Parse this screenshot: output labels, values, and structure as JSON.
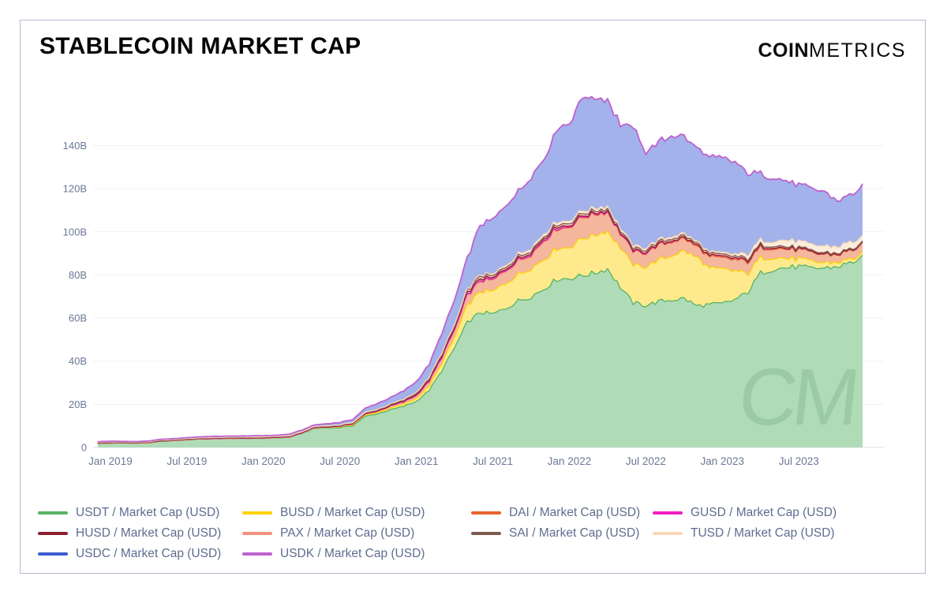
{
  "header": {
    "title": "STABLECOIN MARKET CAP",
    "logo_bold": "COIN",
    "logo_light": "METRICS"
  },
  "watermark": "CM",
  "chart_data": {
    "type": "area",
    "stacked": true,
    "title": "STABLECOIN MARKET CAP",
    "unit": "USD billions",
    "grid": true,
    "legend_position": "bottom",
    "ylim": [
      0,
      160
    ],
    "y_tick_labels": [
      "0",
      "20B",
      "40B",
      "60B",
      "80B",
      "100B",
      "120B",
      "140B"
    ],
    "x_tick_labels": [
      "Jan 2019",
      "Jul 2019",
      "Jan 2020",
      "Jul 2020",
      "Jan 2021",
      "Jul 2021",
      "Jan 2022",
      "Jul 2022",
      "Jan 2023",
      "Jul 2023"
    ],
    "x_tick_month_index": [
      1,
      7,
      13,
      19,
      25,
      31,
      37,
      43,
      49,
      55
    ],
    "months": [
      "2018-12",
      "2019-01",
      "2019-02",
      "2019-03",
      "2019-04",
      "2019-05",
      "2019-06",
      "2019-07",
      "2019-08",
      "2019-09",
      "2019-10",
      "2019-11",
      "2019-12",
      "2020-01",
      "2020-02",
      "2020-03",
      "2020-04",
      "2020-05",
      "2020-06",
      "2020-07",
      "2020-08",
      "2020-09",
      "2020-10",
      "2020-11",
      "2020-12",
      "2021-01",
      "2021-02",
      "2021-03",
      "2021-04",
      "2021-05",
      "2021-06",
      "2021-07",
      "2021-08",
      "2021-09",
      "2021-10",
      "2021-11",
      "2021-12",
      "2022-01",
      "2022-02",
      "2022-03",
      "2022-04",
      "2022-05",
      "2022-06",
      "2022-07",
      "2022-08",
      "2022-09",
      "2022-10",
      "2022-11",
      "2022-12",
      "2023-01",
      "2023-02",
      "2023-03",
      "2023-04",
      "2023-05",
      "2023-06",
      "2023-07",
      "2023-08",
      "2023-09",
      "2023-10",
      "2023-11",
      "2023-12"
    ],
    "series": [
      {
        "name": "USDT",
        "legend": "USDT / Market Cap (USD)",
        "color": "#57b266",
        "values": [
          1.9,
          2.0,
          2.05,
          2.0,
          2.2,
          2.9,
          3.2,
          3.6,
          3.9,
          4.05,
          4.1,
          4.15,
          4.1,
          4.2,
          4.4,
          4.6,
          6.4,
          8.8,
          9.1,
          9.2,
          10.0,
          14.4,
          15.7,
          17.5,
          19.0,
          21.4,
          26.4,
          35.6,
          46.2,
          57.9,
          62.6,
          61.8,
          64.5,
          68.0,
          70.0,
          73.5,
          78.0,
          78.4,
          79.7,
          80.9,
          82.9,
          74.3,
          67.0,
          65.9,
          67.6,
          68.4,
          69.1,
          65.6,
          66.2,
          66.6,
          68.5,
          72.0,
          80.9,
          82.8,
          83.3,
          83.8,
          82.9,
          83.2,
          83.8,
          85.5,
          88.0
        ]
      },
      {
        "name": "BUSD",
        "legend": "BUSD / Market Cap (USD)",
        "color": "#fdd20a",
        "values": [
          0,
          0,
          0,
          0,
          0,
          0,
          0,
          0,
          0,
          0.01,
          0.03,
          0.06,
          0.1,
          0.12,
          0.13,
          0.15,
          0.19,
          0.23,
          0.28,
          0.37,
          0.49,
          0.58,
          0.68,
          0.79,
          1.0,
          1.4,
          2.1,
          3.3,
          4.7,
          7.8,
          9.7,
          10.4,
          11.6,
          12.3,
          13.2,
          13.7,
          14.6,
          14.4,
          17.4,
          17.6,
          17.5,
          18.3,
          17.5,
          17.8,
          19.3,
          20.6,
          21.7,
          22.4,
          16.6,
          16.1,
          13.3,
          8.7,
          7.1,
          5.6,
          4.3,
          3.6,
          3.1,
          2.6,
          2.0,
          1.7,
          1.5
        ]
      },
      {
        "name": "DAI",
        "legend": "DAI / Market Cap (USD)",
        "color": "#e8632c",
        "values": [
          0,
          0,
          0,
          0,
          0,
          0,
          0,
          0,
          0,
          0,
          0,
          0.02,
          0.04,
          0.06,
          0.09,
          0.09,
          0.09,
          0.11,
          0.13,
          0.25,
          0.41,
          0.45,
          0.57,
          0.93,
          1.1,
          1.3,
          2.1,
          2.9,
          3.6,
          4.6,
          5.0,
          5.3,
          5.9,
          6.4,
          6.5,
          8.6,
          9.1,
          9.4,
          9.9,
          9.6,
          8.8,
          6.6,
          6.3,
          6.3,
          6.9,
          6.4,
          5.7,
          5.2,
          5.1,
          5.1,
          5.2,
          5.4,
          4.7,
          4.5,
          4.3,
          4.2,
          3.9,
          3.8,
          3.6,
          3.9,
          4.4
        ]
      },
      {
        "name": "GUSD",
        "legend": "GUSD / Market Cap (USD)",
        "color": "#f01fc5",
        "values": [
          0.09,
          0.09,
          0.08,
          0.07,
          0.06,
          0.05,
          0.04,
          0.03,
          0.02,
          0.02,
          0.01,
          0.01,
          0.01,
          0.01,
          0.01,
          0.01,
          0.01,
          0.01,
          0.01,
          0.01,
          0.01,
          0.01,
          0.01,
          0.01,
          0.02,
          0.05,
          0.08,
          0.1,
          0.12,
          0.18,
          0.2,
          0.2,
          0.22,
          0.25,
          0.3,
          0.3,
          0.3,
          0.3,
          0.32,
          0.33,
          0.3,
          0.28,
          0.26,
          0.25,
          0.3,
          0.4,
          0.5,
          0.6,
          0.6,
          0.6,
          0.65,
          0.6,
          0.56,
          0.5,
          0.4,
          0.3,
          0.28,
          0.25,
          0.22,
          0.2,
          0.18
        ]
      },
      {
        "name": "HUSD",
        "legend": "HUSD / Market Cap (USD)",
        "color": "#8b1f2f",
        "values": [
          0,
          0,
          0,
          0,
          0,
          0,
          0,
          0.01,
          0.05,
          0.08,
          0.1,
          0.12,
          0.13,
          0.14,
          0.15,
          0.16,
          0.16,
          0.15,
          0.14,
          0.15,
          0.17,
          0.2,
          0.24,
          0.27,
          0.28,
          0.45,
          0.6,
          0.75,
          0.9,
          1.0,
          0.95,
          0.6,
          0.55,
          0.6,
          0.7,
          0.9,
          0.95,
          0.45,
          0.42,
          0.4,
          0.38,
          0.35,
          0.32,
          0.3,
          0.25,
          0.15,
          0.06,
          0.04,
          0.03,
          0.03,
          0.03,
          0.03,
          0.03,
          0.03,
          0.02,
          0.02,
          0.02,
          0.02,
          0.02,
          0.02,
          0.02
        ]
      },
      {
        "name": "PAX",
        "legend": "PAX / Market Cap (USD)",
        "color": "#f29180",
        "values": [
          0.17,
          0.15,
          0.13,
          0.12,
          0.12,
          0.13,
          0.14,
          0.16,
          0.18,
          0.2,
          0.2,
          0.2,
          0.21,
          0.22,
          0.23,
          0.24,
          0.24,
          0.24,
          0.25,
          0.26,
          0.27,
          0.3,
          0.32,
          0.4,
          0.5,
          0.7,
          0.85,
          0.92,
          1.0,
          1.1,
          1.2,
          0.95,
          0.9,
          0.95,
          0.9,
          0.9,
          0.95,
          1.1,
          1.05,
          1.0,
          0.95,
          0.9,
          0.9,
          0.95,
          0.95,
          0.9,
          0.88,
          0.85,
          0.88,
          0.88,
          0.85,
          0.8,
          0.75,
          0.7,
          0.65,
          0.6,
          0.55,
          0.5,
          0.48,
          0.45,
          0.42
        ]
      },
      {
        "name": "SAI",
        "legend": "SAI / Market Cap (USD)",
        "color": "#7b5b4e",
        "values": [
          0.07,
          0.075,
          0.08,
          0.085,
          0.09,
          0.095,
          0.1,
          0.1,
          0.1,
          0.1,
          0.1,
          0.1,
          0.05,
          0.03,
          0.025,
          0.01,
          0.008,
          0.006,
          0.005,
          0.005,
          0.005,
          0.005,
          0.005,
          0.005,
          0.005,
          0.004,
          0.004,
          0.004,
          0.004,
          0.004,
          0.003,
          0.003,
          0.003,
          0.003,
          0.003,
          0.003,
          0.003,
          0.003,
          0.003,
          0.003,
          0.003,
          0.003,
          0.003,
          0.003,
          0.003,
          0.003,
          0.003,
          0.003,
          0.003,
          0.003,
          0.003,
          0.003,
          0.003,
          0.003,
          0.003,
          0.003,
          0.003,
          0.003,
          0.003,
          0.003,
          0.003
        ]
      },
      {
        "name": "TUSD",
        "legend": "TUSD / Market Cap (USD)",
        "color": "#f7d9b5",
        "values": [
          0.2,
          0.21,
          0.2,
          0.2,
          0.22,
          0.24,
          0.24,
          0.22,
          0.2,
          0.19,
          0.19,
          0.17,
          0.16,
          0.15,
          0.14,
          0.14,
          0.14,
          0.14,
          0.15,
          0.18,
          0.22,
          0.26,
          0.28,
          0.3,
          0.31,
          0.32,
          0.36,
          0.4,
          0.42,
          0.5,
          0.6,
          0.7,
          0.9,
          1.1,
          1.2,
          1.2,
          1.2,
          1.2,
          1.2,
          1.2,
          1.2,
          1.1,
          1.05,
          1.0,
          1.0,
          1.0,
          0.95,
          0.8,
          0.75,
          0.8,
          0.97,
          2.0,
          2.1,
          2.0,
          3.1,
          2.9,
          2.8,
          3.1,
          3.0,
          3.2,
          2.6
        ]
      },
      {
        "name": "USDC",
        "legend": "USDC / Market Cap (USD)",
        "color": "#3c5bd2",
        "values": [
          0.26,
          0.35,
          0.25,
          0.25,
          0.29,
          0.33,
          0.36,
          0.4,
          0.43,
          0.46,
          0.45,
          0.44,
          0.52,
          0.52,
          0.46,
          0.68,
          0.73,
          0.71,
          0.93,
          1.1,
          1.4,
          1.9,
          2.78,
          2.9,
          3.9,
          4.9,
          6.0,
          9.0,
          11.5,
          14.5,
          23.0,
          26.0,
          27.5,
          29.5,
          32.5,
          34.5,
          42.4,
          45.5,
          52.4,
          51.3,
          49.3,
          48.0,
          55.9,
          44.0,
          45.2,
          46.9,
          44.6,
          44.0,
          44.5,
          44.4,
          42.3,
          38.0,
          30.6,
          29.0,
          27.5,
          26.5,
          26.0,
          25.5,
          21.0,
          22.0,
          23.5
        ]
      },
      {
        "name": "USDK",
        "legend": "USDK / Market Cap (USD)",
        "color": "#bf63cf",
        "values": [
          0,
          0,
          0,
          0,
          0,
          0,
          0.01,
          0.02,
          0.03,
          0.03,
          0.03,
          0.03,
          0.03,
          0.03,
          0.03,
          0.03,
          0.03,
          0.03,
          0.03,
          0.03,
          0.03,
          0.03,
          0.03,
          0.03,
          0.03,
          0.04,
          0.04,
          0.04,
          0.04,
          0.04,
          0.03,
          0.03,
          0.03,
          0.03,
          0.03,
          0.03,
          0.03,
          0.03,
          0.03,
          0.03,
          0.03,
          0.03,
          0.03,
          0.03,
          0.03,
          0.03,
          0.03,
          0.03,
          0.03,
          0.03,
          0.03,
          0.03,
          0.03,
          0.03,
          0.03,
          0.03,
          0.03,
          0.03,
          0.03,
          0.03,
          0.03
        ]
      }
    ]
  }
}
